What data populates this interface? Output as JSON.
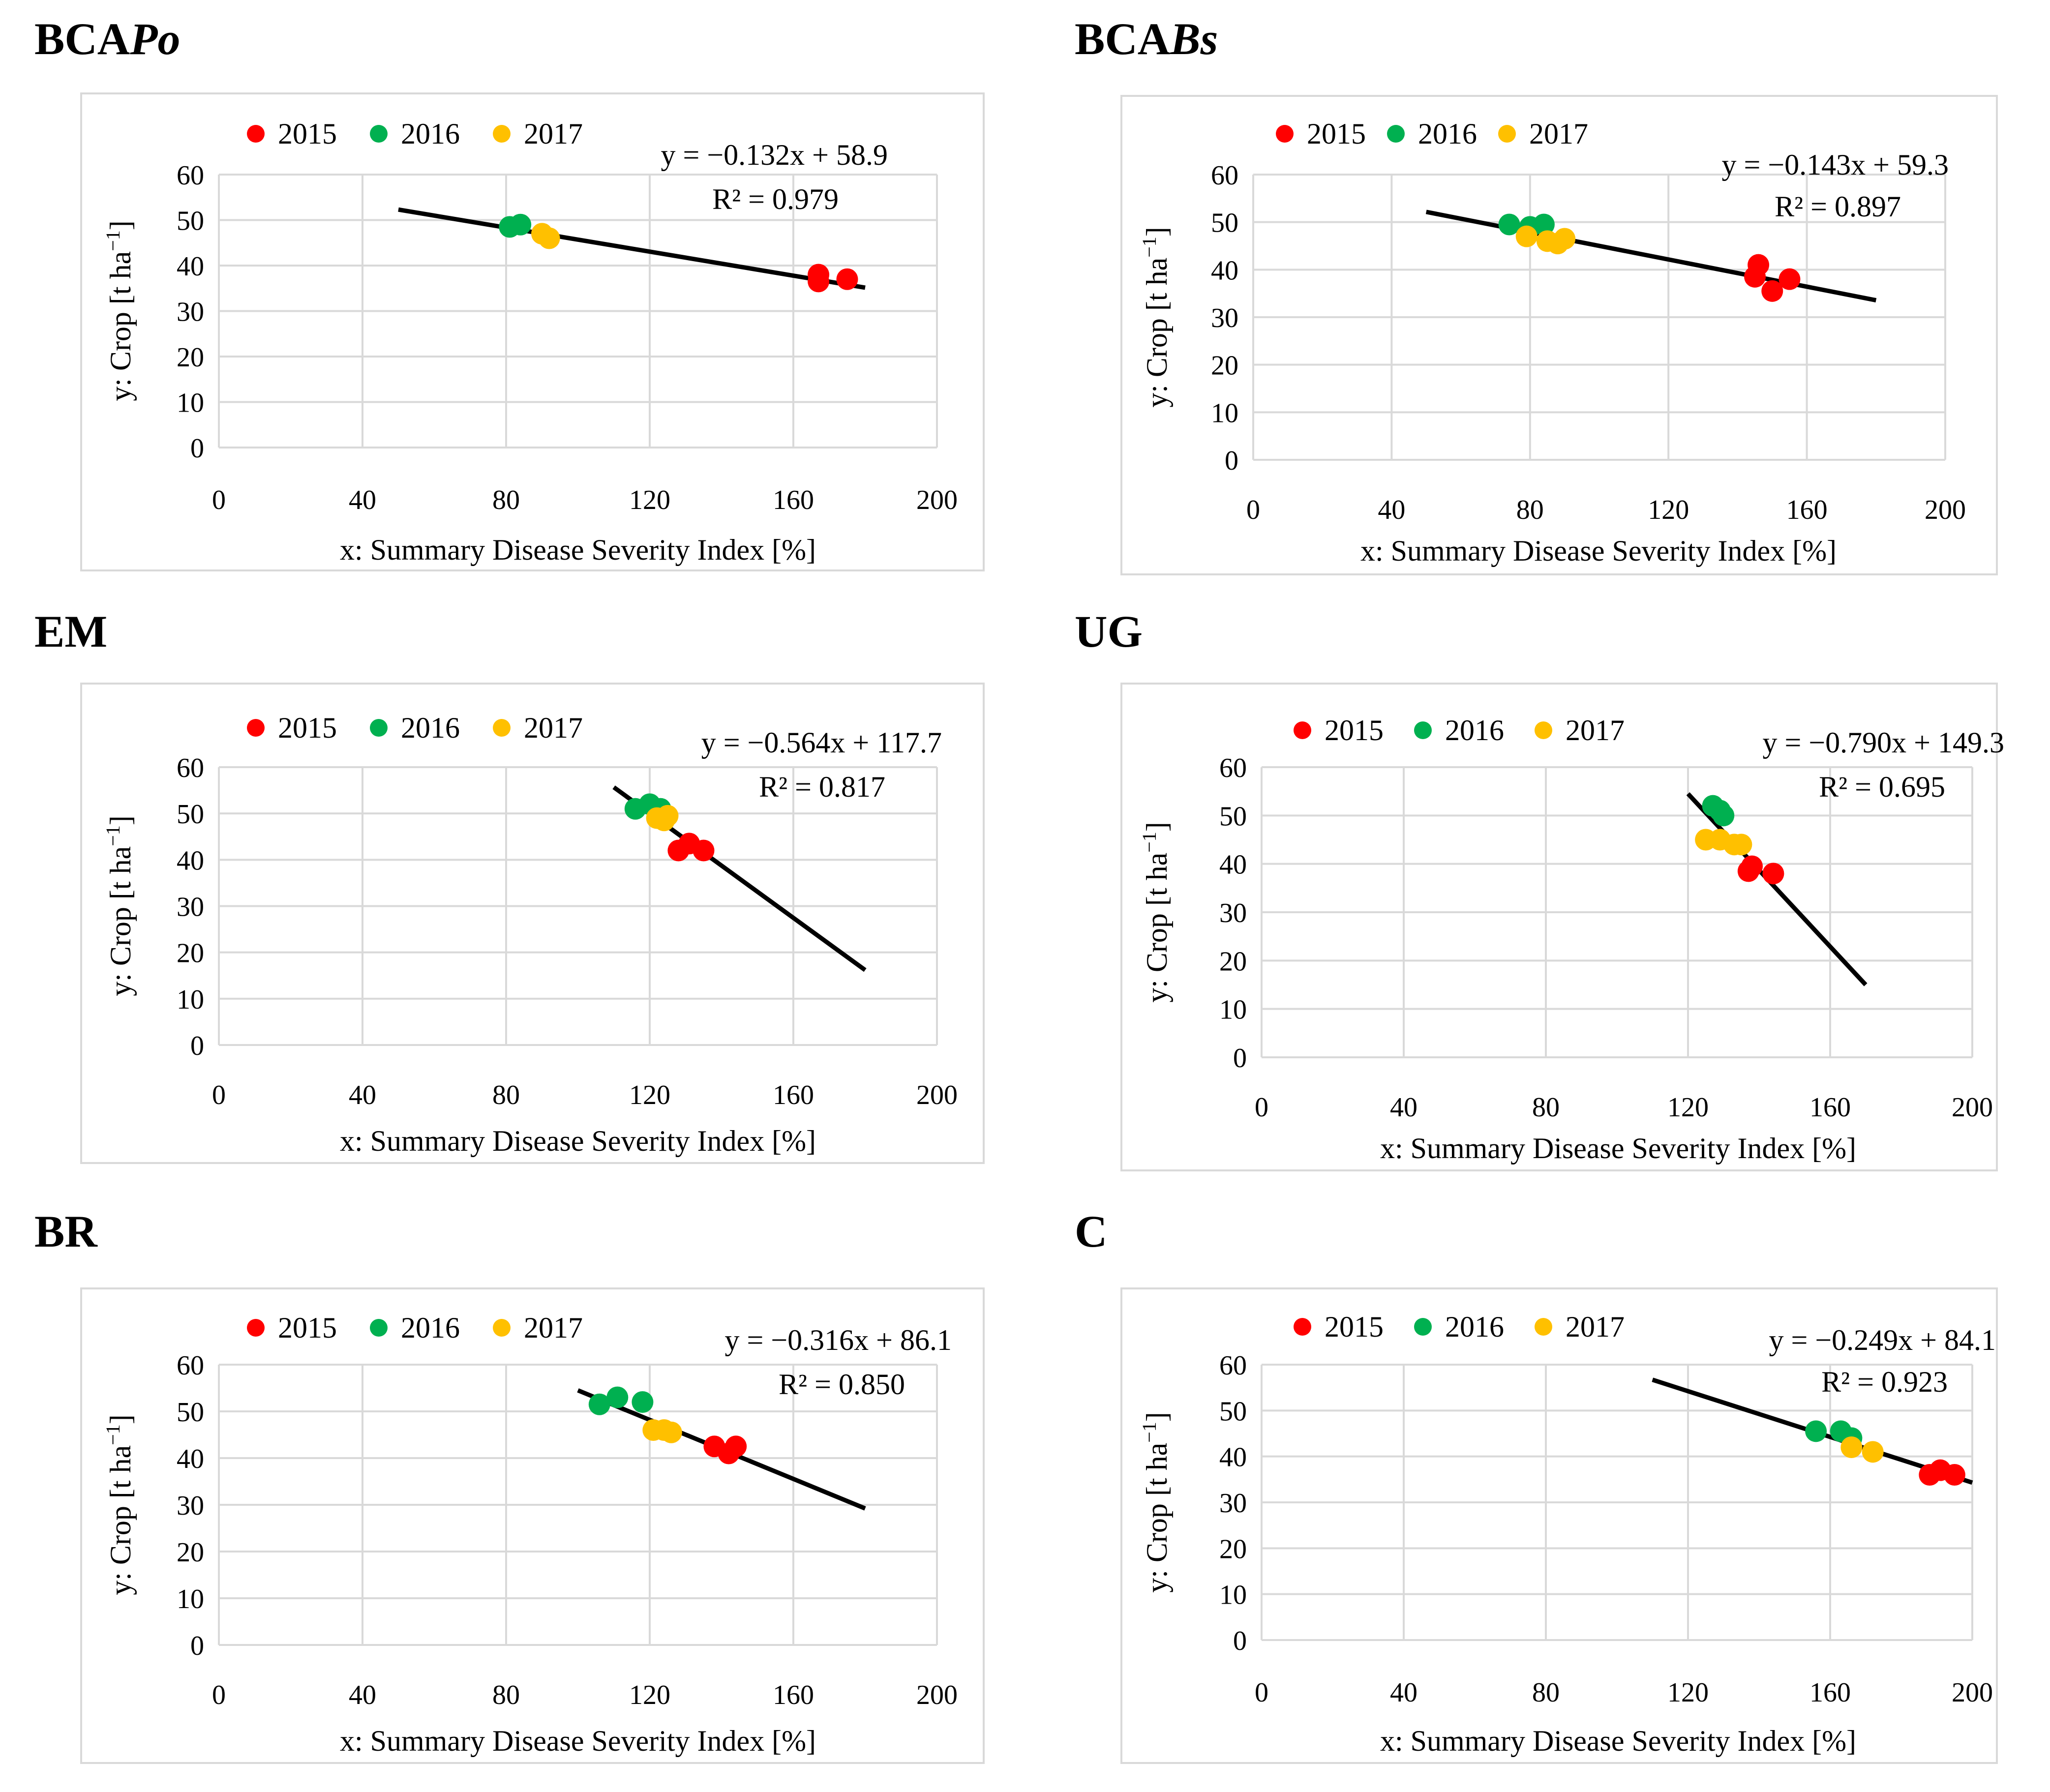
{
  "chart_data": [
    {
      "type": "scatter",
      "title_parts": [
        "BCA",
        "Po"
      ],
      "xlabel": "x: Summary Disease Severity Index [%]",
      "ylabel_parts": [
        "y: Crop [t ha",
        "−1",
        "]"
      ],
      "xlim": [
        0,
        200
      ],
      "ylim": [
        0,
        60
      ],
      "xticks": [
        "0",
        "40",
        "80",
        "120",
        "160",
        "200"
      ],
      "yticks": [
        "0",
        "10",
        "20",
        "30",
        "40",
        "50",
        "60"
      ],
      "grid": true,
      "legend": "top-left",
      "equation": "y = −0.132x + 58.9",
      "r2": "R² = 0.979",
      "trend": {
        "x": [
          50,
          180
        ]
      },
      "series": [
        {
          "name": "2015",
          "color": "#ff0000",
          "points": [
            [
              167,
              38
            ],
            [
              167,
              36.5
            ],
            [
              175,
              37
            ]
          ]
        },
        {
          "name": "2016",
          "color": "#00b050",
          "points": [
            [
              81,
              48.5
            ],
            [
              84,
              49
            ]
          ]
        },
        {
          "name": "2017",
          "color": "#ffc000",
          "points": [
            [
              90,
              47
            ],
            [
              92,
              46
            ]
          ]
        }
      ]
    },
    {
      "type": "scatter",
      "title_parts": [
        "BCA",
        "Bs"
      ],
      "xlabel": "x: Summary Disease Severity Index [%]",
      "ylabel_parts": [
        "y: Crop [t ha",
        "−1",
        "]"
      ],
      "xlim": [
        0,
        200
      ],
      "ylim": [
        0,
        60
      ],
      "xticks": [
        "0",
        "40",
        "80",
        "120",
        "160",
        "200"
      ],
      "yticks": [
        "0",
        "10",
        "20",
        "30",
        "40",
        "50",
        "60"
      ],
      "grid": true,
      "legend": "top-left",
      "equation": "y = −0.143x + 59.3",
      "r2": "R² = 0.897",
      "trend": {
        "x": [
          50,
          180
        ]
      },
      "series": [
        {
          "name": "2015",
          "color": "#ff0000",
          "points": [
            [
              146,
              41
            ],
            [
              145,
              38.5
            ],
            [
              150,
              35.5
            ],
            [
              155,
              38
            ]
          ]
        },
        {
          "name": "2016",
          "color": "#00b050",
          "points": [
            [
              74,
              49.5
            ],
            [
              80,
              49
            ],
            [
              84,
              49.5
            ]
          ]
        },
        {
          "name": "2017",
          "color": "#ffc000",
          "points": [
            [
              79,
              47
            ],
            [
              85,
              46
            ],
            [
              88,
              45.5
            ],
            [
              90,
              46.5
            ]
          ]
        }
      ]
    },
    {
      "type": "scatter",
      "title_parts": [
        "EM"
      ],
      "xlabel": "x: Summary Disease Severity Index [%]",
      "ylabel_parts": [
        "y: Crop [t ha",
        "−1",
        "]"
      ],
      "xlim": [
        0,
        200
      ],
      "ylim": [
        0,
        60
      ],
      "xticks": [
        "0",
        "40",
        "80",
        "120",
        "160",
        "200"
      ],
      "yticks": [
        "0",
        "10",
        "20",
        "30",
        "40",
        "50",
        "60"
      ],
      "grid": true,
      "legend": "top-left",
      "equation": "y = −0.564x + 117.7",
      "r2": "R² = 0.817",
      "trend": {
        "x": [
          110,
          180
        ]
      },
      "series": [
        {
          "name": "2015",
          "color": "#ff0000",
          "points": [
            [
              128,
              42
            ],
            [
              131,
              43.5
            ],
            [
              135,
              42
            ]
          ]
        },
        {
          "name": "2016",
          "color": "#00b050",
          "points": [
            [
              116,
              51
            ],
            [
              120,
              52
            ],
            [
              123,
              51
            ]
          ]
        },
        {
          "name": "2017",
          "color": "#ffc000",
          "points": [
            [
              122,
              49
            ],
            [
              124,
              48.5
            ],
            [
              125,
              49.5
            ]
          ]
        }
      ]
    },
    {
      "type": "scatter",
      "title_parts": [
        "UG"
      ],
      "xlabel": "x: Summary Disease Severity Index [%]",
      "ylabel_parts": [
        "y: Crop [t ha",
        "−1",
        "]"
      ],
      "xlim": [
        0,
        200
      ],
      "ylim": [
        0,
        60
      ],
      "xticks": [
        "0",
        "40",
        "80",
        "120",
        "160",
        "200"
      ],
      "yticks": [
        "0",
        "10",
        "20",
        "30",
        "40",
        "50",
        "60"
      ],
      "grid": true,
      "legend": "top-left",
      "equation": "y = −0.790x + 149.3",
      "r2": "R² = 0.695",
      "trend": {
        "x": [
          120,
          170
        ]
      },
      "series": [
        {
          "name": "2015",
          "color": "#ff0000",
          "points": [
            [
              137,
              38.5
            ],
            [
              138,
              39.5
            ],
            [
              144,
              38
            ]
          ]
        },
        {
          "name": "2016",
          "color": "#00b050",
          "points": [
            [
              127,
              52
            ],
            [
              129,
              51
            ],
            [
              130,
              50
            ]
          ]
        },
        {
          "name": "2017",
          "color": "#ffc000",
          "points": [
            [
              125,
              45
            ],
            [
              129,
              45
            ],
            [
              133,
              44
            ],
            [
              135,
              44
            ]
          ]
        }
      ]
    },
    {
      "type": "scatter",
      "title_parts": [
        "BR"
      ],
      "xlabel": "x: Summary Disease Severity Index [%]",
      "ylabel_parts": [
        "y: Crop [t ha",
        "−1",
        "]"
      ],
      "xlim": [
        0,
        200
      ],
      "ylim": [
        0,
        60
      ],
      "xticks": [
        "0",
        "40",
        "80",
        "120",
        "160",
        "200"
      ],
      "yticks": [
        "0",
        "10",
        "20",
        "30",
        "40",
        "50",
        "60"
      ],
      "grid": true,
      "legend": "top-left",
      "equation": "y = −0.316x + 86.1",
      "r2": "R² = 0.850",
      "trend": {
        "x": [
          100,
          180
        ]
      },
      "series": [
        {
          "name": "2015",
          "color": "#ff0000",
          "points": [
            [
              138,
              42.5
            ],
            [
              142,
              41
            ],
            [
              144,
              42.5
            ]
          ]
        },
        {
          "name": "2016",
          "color": "#00b050",
          "points": [
            [
              106,
              51.5
            ],
            [
              111,
              53
            ],
            [
              118,
              52
            ]
          ]
        },
        {
          "name": "2017",
          "color": "#ffc000",
          "points": [
            [
              121,
              46
            ],
            [
              124,
              46
            ],
            [
              126,
              45.5
            ]
          ]
        }
      ]
    },
    {
      "type": "scatter",
      "title_parts": [
        "C"
      ],
      "xlabel": "x: Summary Disease Severity Index [%]",
      "ylabel_parts": [
        "y: Crop [t ha",
        "−1",
        "]"
      ],
      "xlim": [
        0,
        200
      ],
      "ylim": [
        0,
        60
      ],
      "xticks": [
        "0",
        "40",
        "80",
        "120",
        "160",
        "200"
      ],
      "yticks": [
        "0",
        "10",
        "20",
        "30",
        "40",
        "50",
        "60"
      ],
      "grid": true,
      "legend": "top-left",
      "equation": "y = −0.249x + 84.1",
      "r2": "R² = 0.923",
      "trend": {
        "x": [
          110,
          200
        ]
      },
      "series": [
        {
          "name": "2015",
          "color": "#ff0000",
          "points": [
            [
              188,
              36
            ],
            [
              191,
              37
            ],
            [
              195,
              36
            ]
          ]
        },
        {
          "name": "2016",
          "color": "#00b050",
          "points": [
            [
              156,
              45.5
            ],
            [
              163,
              45.5
            ],
            [
              166,
              44
            ]
          ]
        },
        {
          "name": "2017",
          "color": "#ffc000",
          "points": [
            [
              166,
              42
            ],
            [
              172,
              41
            ]
          ]
        }
      ]
    }
  ]
}
